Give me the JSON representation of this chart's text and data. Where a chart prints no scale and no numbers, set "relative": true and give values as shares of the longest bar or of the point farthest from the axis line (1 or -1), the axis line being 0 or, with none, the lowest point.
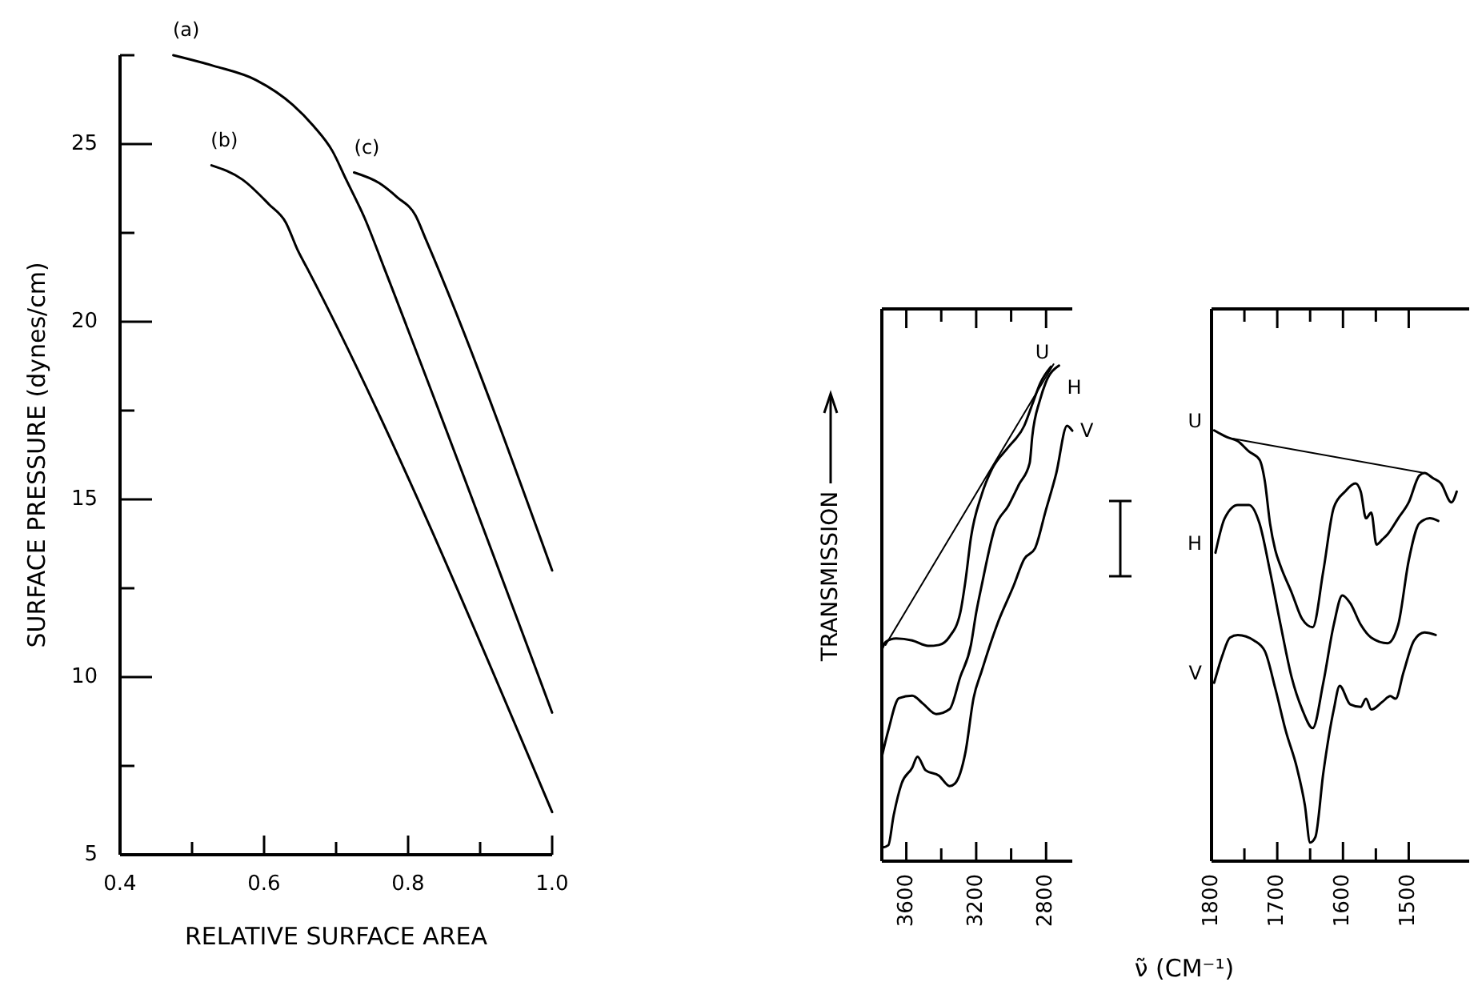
{
  "chart_data": [
    {
      "type": "line",
      "xlabel": "RELATIVE SURFACE AREA",
      "ylabel": "SURFACE PRESSURE (dynes/cm)",
      "xlim": [
        0.4,
        1.0
      ],
      "ylim": [
        5,
        27.5
      ],
      "xticks": [
        0.4,
        {
          "value": 0.5,
          "label": null
        },
        0.6,
        {
          "value": 0.7,
          "label": null
        },
        0.8,
        {
          "value": 0.9,
          "label": null
        },
        "1.0"
      ],
      "yticks": [
        5,
        {
          "value": 7.5,
          "label": null
        },
        10,
        {
          "value": 12.5,
          "label": null
        },
        15,
        {
          "value": 17.5,
          "label": null
        },
        20,
        {
          "value": 22.5,
          "label": null
        },
        25,
        {
          "value": 27.5,
          "label": null
        }
      ],
      "series": [
        {
          "name": "(a)",
          "color": "#000000",
          "x": [
            0.474,
            0.53,
            0.589,
            0.64,
            0.669,
            0.695,
            0.714,
            0.74,
            0.767,
            1.0
          ],
          "values": [
            27.5,
            27.2,
            26.8,
            26.1,
            25.5,
            24.8,
            24.0,
            22.9,
            21.5,
            9.0
          ]
        },
        {
          "name": "(b)",
          "color": "#000000",
          "x": [
            0.527,
            0.57,
            0.607,
            0.63,
            0.647,
            0.66,
            1.0
          ],
          "values": [
            24.4,
            24.0,
            23.3,
            22.8,
            22.0,
            21.5,
            6.2
          ]
        },
        {
          "name": "(c)",
          "color": "#000000",
          "x": [
            0.725,
            0.76,
            0.785,
            0.81,
            0.825,
            1.0
          ],
          "values": [
            24.2,
            23.9,
            23.5,
            23.0,
            22.3,
            13.0
          ]
        }
      ]
    },
    {
      "type": "line",
      "relative": true,
      "ylabel": "TRANSMISSION",
      "xlabel": "ν̃ (CM⁻¹)",
      "xlim": [
        3740,
        2650
      ],
      "xticks": [
        3600,
        {
          "value": 3400,
          "label": null
        },
        3200,
        {
          "value": 3000,
          "label": null
        },
        2800
      ],
      "series": [
        {
          "color": "#000000",
          "x": [
            3719,
            2757
          ],
          "values": [
            0.435,
            1.0
          ]
        },
        {
          "name": "U",
          "color": "#000000",
          "x": [
            3740,
            3719,
            3658,
            3566,
            3474,
            3413,
            3352,
            3291,
            3261,
            3230,
            3169,
            3108,
            3016,
            2925,
            2879,
            2833,
            2772
          ],
          "values": [
            0.425,
            0.441,
            0.448,
            0.444,
            0.433,
            0.435,
            0.452,
            0.5,
            0.565,
            0.651,
            0.737,
            0.79,
            0.833,
            0.876,
            0.919,
            0.962,
            0.995
          ]
        },
        {
          "name": "H",
          "color": "#000000",
          "x": [
            3740,
            3703,
            3642,
            3566,
            3505,
            3429,
            3352,
            3291,
            3230,
            3200,
            3169,
            3092,
            3016,
            2955,
            2894,
            2879,
            2833,
            2803,
            2726
          ],
          "values": [
            0.21,
            0.263,
            0.328,
            0.333,
            0.317,
            0.296,
            0.306,
            0.371,
            0.435,
            0.5,
            0.554,
            0.672,
            0.715,
            0.758,
            0.801,
            0.855,
            0.93,
            0.962,
            0.997
          ]
        },
        {
          "name": "V",
          "color": "#000000",
          "x": [
            3740,
            3703,
            3673,
            3627,
            3566,
            3536,
            3490,
            3413,
            3352,
            3322,
            3261,
            3215,
            3169,
            3078,
            2986,
            2925,
            2864,
            2803,
            2742,
            2680,
            2650
          ],
          "values": [
            0.027,
            0.032,
            0.091,
            0.156,
            0.188,
            0.21,
            0.183,
            0.172,
            0.151,
            0.156,
            0.22,
            0.328,
            0.382,
            0.478,
            0.554,
            0.608,
            0.629,
            0.704,
            0.78,
            0.876,
            0.866
          ]
        }
      ]
    },
    {
      "type": "line",
      "relative": true,
      "xlim": [
        1800,
        1408
      ],
      "xticks": [
        1800,
        {
          "value": 1750,
          "label": null
        },
        1700,
        {
          "value": 1650,
          "label": null
        },
        1600,
        {
          "value": 1550,
          "label": null
        },
        1500
      ],
      "series": [
        {
          "color": "#000000",
          "x": [
            1768,
            1476
          ],
          "values": [
            0.981,
            0.901
          ]
        },
        {
          "name": "U",
          "color": "#000000",
          "x": [
            1796,
            1776,
            1760,
            1743,
            1727,
            1719,
            1711,
            1703,
            1695,
            1678,
            1662,
            1646,
            1630,
            1614,
            1597,
            1581,
            1573,
            1565,
            1557,
            1549,
            1540,
            1532,
            1516,
            1500,
            1484,
            1476,
            1463,
            1451,
            1435,
            1427
          ],
          "values": [
            1.0,
            0.984,
            0.975,
            0.951,
            0.932,
            0.883,
            0.784,
            0.722,
            0.685,
            0.623,
            0.562,
            0.543,
            0.673,
            0.821,
            0.858,
            0.877,
            0.858,
            0.796,
            0.809,
            0.735,
            0.747,
            0.759,
            0.796,
            0.833,
            0.895,
            0.901,
            0.889,
            0.877,
            0.833,
            0.858
          ]
        },
        {
          "name": "H",
          "color": "#000000",
          "x": [
            1794,
            1780,
            1760,
            1743,
            1727,
            1711,
            1695,
            1678,
            1662,
            1646,
            1630,
            1614,
            1601,
            1589,
            1573,
            1557,
            1532,
            1516,
            1500,
            1484,
            1468,
            1455
          ],
          "values": [
            0.716,
            0.796,
            0.827,
            0.827,
            0.784,
            0.673,
            0.549,
            0.426,
            0.352,
            0.309,
            0.414,
            0.549,
            0.617,
            0.599,
            0.549,
            0.519,
            0.506,
            0.549,
            0.698,
            0.784,
            0.796,
            0.79
          ]
        },
        {
          "name": "V",
          "color": "#000000",
          "x": [
            1796,
            1784,
            1772,
            1760,
            1735,
            1719,
            1703,
            1687,
            1670,
            1658,
            1650,
            1642,
            1630,
            1614,
            1605,
            1589,
            1573,
            1565,
            1557,
            1540,
            1528,
            1520,
            1508,
            1492,
            1476,
            1459
          ],
          "values": [
            0.414,
            0.475,
            0.519,
            0.525,
            0.512,
            0.488,
            0.401,
            0.302,
            0.216,
            0.13,
            0.043,
            0.056,
            0.204,
            0.352,
            0.407,
            0.364,
            0.358,
            0.377,
            0.352,
            0.37,
            0.383,
            0.377,
            0.438,
            0.512,
            0.531,
            0.525
          ]
        }
      ]
    }
  ]
}
